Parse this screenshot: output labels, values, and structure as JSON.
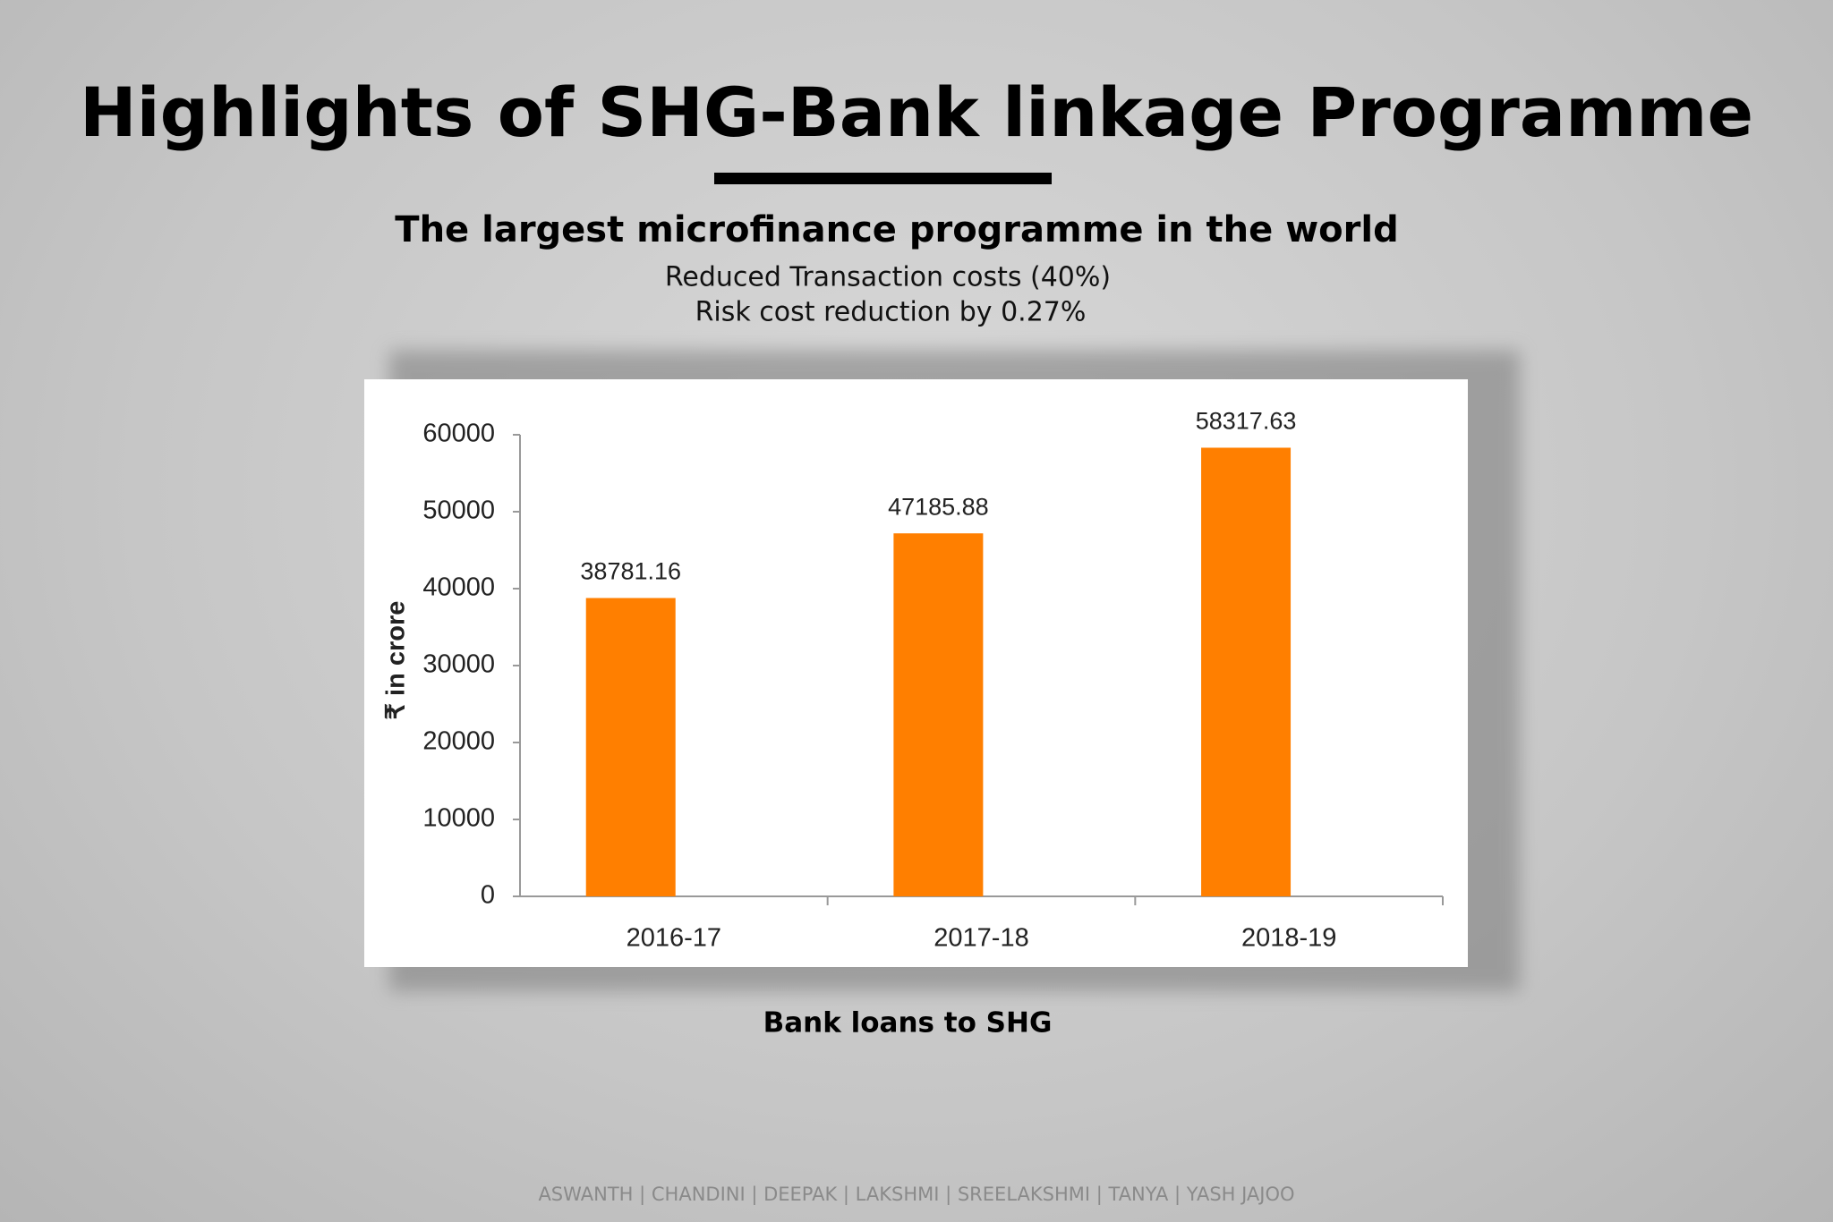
{
  "title": "Highlights of SHG-Bank linkage Programme",
  "subtitle": "The largest microfinance programme in the world",
  "notes": [
    "Reduced Transaction costs (40%)",
    "Risk cost reduction by 0.27%"
  ],
  "caption": "Bank loans to SHG",
  "footer": "ASWANTH | CHANDINI | DEEPAK | LAKSHMI | SREELAKSHMI | TANYA | YASH JAJOO",
  "chart_data": {
    "type": "bar",
    "ylabel": "₹ in crore",
    "categories": [
      "2016-17",
      "2017-18",
      "2018-19"
    ],
    "values": [
      38781.16,
      47185.88,
      58317.63
    ],
    "color": "#ff7f00",
    "ylim": [
      0,
      60000
    ],
    "yticks": [
      0,
      10000,
      20000,
      30000,
      40000,
      50000,
      60000
    ]
  }
}
